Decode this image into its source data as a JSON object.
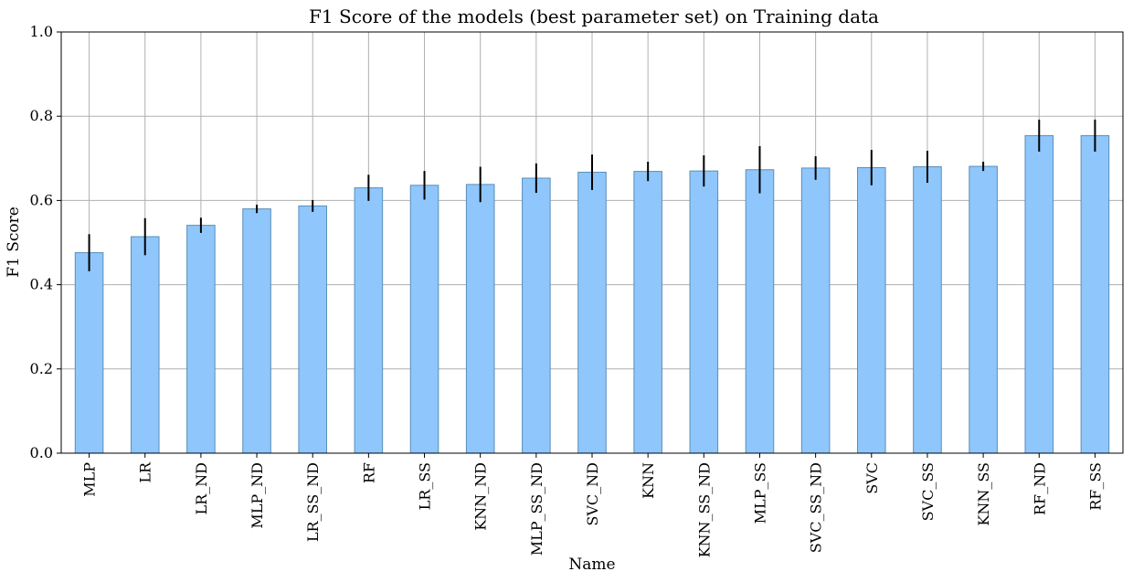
{
  "chart_data": {
    "type": "bar",
    "title": "F1 Score of the models (best parameter set) on Training data",
    "xlabel": "Name",
    "ylabel": "F1 Score",
    "ylim": [
      0,
      1.0
    ],
    "yticks": [
      "0.0",
      "0.2",
      "0.4",
      "0.6",
      "0.8",
      "1.0"
    ],
    "grid": true,
    "categories": [
      "MLP",
      "LR",
      "LR_ND",
      "MLP_ND",
      "LR_SS_ND",
      "RF",
      "LR_SS",
      "KNN_ND",
      "MLP_SS_ND",
      "SVC_ND",
      "KNN",
      "KNN_SS_ND",
      "MLP_SS",
      "SVC_SS_ND",
      "SVC",
      "SVC_SS",
      "KNN_SS",
      "RF_ND",
      "RF_SS"
    ],
    "values": [
      0.476,
      0.514,
      0.541,
      0.58,
      0.587,
      0.63,
      0.636,
      0.638,
      0.653,
      0.667,
      0.669,
      0.67,
      0.673,
      0.677,
      0.678,
      0.68,
      0.681,
      0.754,
      0.754
    ],
    "errors": [
      0.044,
      0.044,
      0.018,
      0.01,
      0.014,
      0.031,
      0.034,
      0.042,
      0.035,
      0.042,
      0.023,
      0.037,
      0.056,
      0.028,
      0.042,
      0.038,
      0.011,
      0.038,
      0.038
    ],
    "colors": {
      "bar_fill": "#8fc6fb",
      "bar_edge": "#5a8fb8",
      "error": "#000000",
      "grid": "#b0b0b0"
    }
  }
}
